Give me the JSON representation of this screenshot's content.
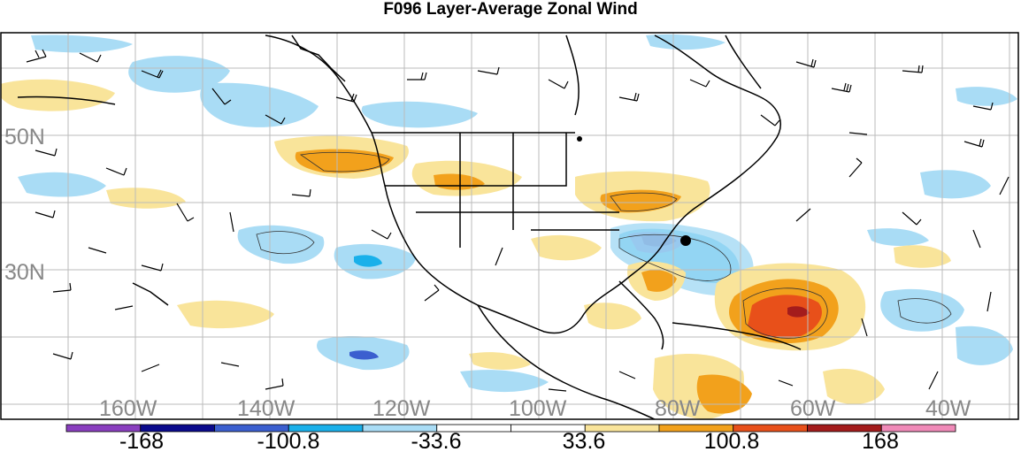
{
  "title": "F096 Layer-Average Zonal Wind",
  "lat_labels": [
    "50N",
    "30N"
  ],
  "lon_labels": [
    "160W",
    "140W",
    "120W",
    "100W",
    "80W",
    "60W",
    "40W"
  ],
  "colorbar": {
    "colors": [
      "#8a3fbf",
      "#0a0a8c",
      "#3b5fcf",
      "#1ab0ea",
      "#a9dcf5",
      "#ffffff",
      "#ffffff",
      "#f9e49a",
      "#f2a11c",
      "#e8501a",
      "#a41c1c",
      "#f08ab8"
    ],
    "labels": [
      "-168",
      "-100.8",
      "-33.6",
      "33.6",
      "100.8",
      "168"
    ]
  },
  "colors": {
    "land_outline": "#000000",
    "grid": "#bbbbbb",
    "axis_label": "#888888"
  }
}
